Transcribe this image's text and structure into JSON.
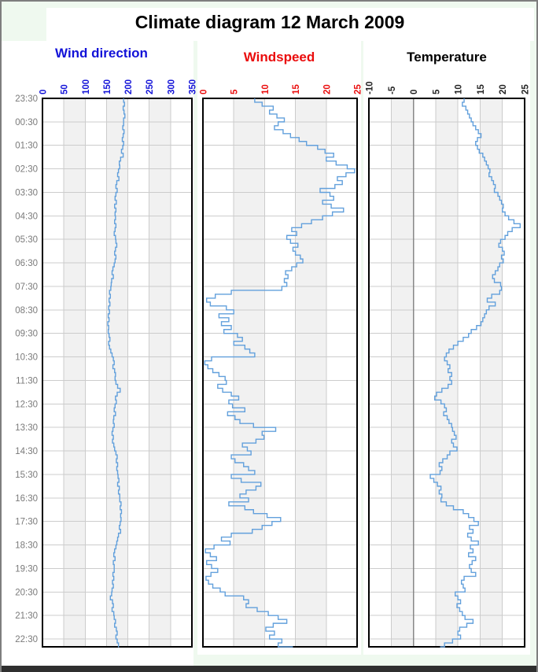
{
  "title": "Climate diagram 12 March 2009",
  "time_axis": {
    "start_label": "23:30",
    "step_minutes": 10,
    "hour_labels": [
      "23:30",
      "00:30",
      "01:30",
      "02:30",
      "03:30",
      "04:30",
      "05:30",
      "06:30",
      "07:30",
      "08:30",
      "09:30",
      "10:30",
      "11:30",
      "12:30",
      "13:30",
      "14:30",
      "15:30",
      "16:30",
      "17:30",
      "18:30",
      "19:30",
      "20:30",
      "21:30",
      "22:30"
    ],
    "label_color": "#7a7a7a"
  },
  "colors": {
    "line": "#62a0dc",
    "grid": "#cccccc",
    "band": "#f1f1f1",
    "border": "#000000",
    "zero_line": "#888888",
    "page_background": "#eff9ef",
    "panel_background": "#ffffff",
    "bottom_bar": "#2f2f2f",
    "window_border": "#7e7e7e"
  },
  "chart_data": [
    {
      "type": "line",
      "title": "Wind direction",
      "title_color": "#1212d8",
      "axis": {
        "min": 0,
        "max": 350,
        "ticks": [
          0,
          50,
          100,
          150,
          200,
          250,
          300,
          350
        ],
        "tick_color": "#1212d8"
      },
      "values": [
        190,
        192,
        189,
        191,
        193,
        190,
        190,
        188,
        191,
        189,
        187,
        190,
        188,
        185,
        189,
        183,
        180,
        181,
        178,
        176,
        179,
        174,
        172,
        175,
        172,
        170,
        173,
        169,
        172,
        170,
        171,
        169,
        172,
        170,
        168,
        171,
        172,
        174,
        171,
        169,
        172,
        170,
        168,
        165,
        163,
        166,
        162,
        161,
        160,
        157,
        159,
        156,
        158,
        155,
        157,
        154,
        156,
        153,
        155,
        154,
        156,
        158,
        155,
        157,
        160,
        163,
        166,
        168,
        165,
        169,
        171,
        170,
        172,
        176,
        182,
        175,
        171,
        173,
        170,
        168,
        171,
        167,
        166,
        168,
        165,
        163,
        166,
        164,
        167,
        169,
        172,
        175,
        173,
        176,
        174,
        176,
        177,
        179,
        176,
        180,
        178,
        181,
        181,
        184,
        182,
        185,
        183,
        184,
        182,
        180,
        183,
        178,
        176,
        174,
        172,
        169,
        167,
        170,
        166,
        168,
        168,
        165,
        167,
        164,
        166,
        163,
        162,
        159,
        164,
        166,
        163,
        167,
        168,
        171,
        169,
        173,
        175,
        172,
        175,
        178,
        177
      ]
    },
    {
      "type": "line",
      "title": "Windspeed",
      "title_color": "#ea0c0c",
      "axis": {
        "min": 0,
        "max": 25,
        "ticks": [
          0,
          5,
          10,
          15,
          20,
          25
        ],
        "tick_color": "#ea0c0c"
      },
      "values": [
        8.4,
        9.6,
        11.4,
        10.8,
        12.0,
        13.2,
        12.2,
        11.6,
        13.0,
        14.2,
        15.6,
        16.8,
        18.6,
        19.8,
        21.2,
        20.0,
        21.6,
        23.4,
        24.6,
        23.2,
        21.8,
        22.6,
        21.4,
        19.0,
        20.6,
        21.2,
        19.4,
        20.8,
        22.8,
        21.0,
        19.4,
        17.6,
        16.0,
        14.4,
        15.2,
        13.6,
        14.2,
        15.4,
        14.6,
        15.0,
        15.8,
        16.2,
        15.2,
        14.4,
        13.4,
        13.8,
        13.2,
        13.6,
        12.8,
        4.6,
        2.0,
        0.6,
        1.2,
        3.8,
        5.0,
        2.6,
        4.2,
        3.0,
        4.6,
        3.4,
        5.6,
        6.4,
        5.0,
        6.8,
        7.6,
        8.4,
        1.4,
        0.3,
        0.8,
        1.6,
        2.6,
        3.6,
        3.8,
        2.4,
        3.2,
        4.6,
        5.8,
        4.2,
        4.8,
        6.8,
        4.0,
        5.2,
        6.0,
        8.2,
        11.8,
        9.6,
        9.9,
        8.6,
        6.4,
        7.2,
        7.8,
        4.6,
        5.2,
        6.6,
        7.4,
        8.4,
        4.6,
        6.2,
        9.4,
        8.6,
        7.0,
        6.0,
        7.4,
        4.2,
        6.8,
        8.2,
        10.4,
        12.6,
        11.2,
        9.6,
        8.0,
        4.6,
        3.0,
        4.4,
        1.8,
        0.4,
        1.2,
        2.2,
        0.6,
        1.4,
        2.4,
        1.3,
        0.5,
        0.9,
        1.6,
        2.8,
        3.6,
        6.6,
        7.4,
        7.0,
        8.8,
        10.6,
        12.2,
        13.6,
        11.4,
        10.2,
        11.6,
        10.8,
        12.8,
        12.2,
        14.6
      ]
    },
    {
      "type": "line",
      "title": "Temperature",
      "title_color": "#000000",
      "axis": {
        "min": -10,
        "max": 25,
        "ticks": [
          -10,
          -5,
          0,
          5,
          10,
          15,
          20,
          25
        ],
        "tick_color": "#222222"
      },
      "values": [
        11.4,
        11.0,
        11.8,
        12.2,
        12.6,
        13.0,
        13.4,
        14.0,
        14.6,
        15.2,
        14.4,
        14.0,
        14.4,
        14.8,
        15.6,
        16.0,
        16.4,
        16.8,
        17.2,
        17.0,
        17.6,
        18.0,
        18.4,
        18.2,
        19.0,
        19.4,
        19.8,
        20.2,
        20.0,
        20.6,
        21.4,
        22.6,
        24.0,
        22.2,
        21.2,
        20.6,
        19.6,
        19.2,
        20.0,
        20.4,
        19.8,
        20.2,
        19.4,
        19.0,
        18.4,
        17.8,
        18.2,
        19.6,
        19.8,
        19.4,
        17.6,
        16.6,
        18.4,
        17.0,
        16.4,
        16.0,
        15.6,
        15.2,
        14.2,
        13.0,
        12.4,
        11.2,
        10.0,
        9.0,
        8.0,
        7.4,
        7.0,
        7.6,
        8.2,
        7.8,
        8.6,
        8.2,
        8.6,
        7.8,
        6.4,
        5.2,
        4.8,
        6.2,
        7.0,
        7.4,
        6.8,
        7.6,
        8.0,
        8.6,
        8.8,
        9.2,
        9.6,
        8.6,
        9.0,
        9.8,
        8.2,
        7.6,
        6.6,
        5.8,
        6.4,
        6.0,
        3.8,
        4.6,
        5.4,
        6.2,
        5.8,
        6.4,
        6.2,
        7.4,
        9.0,
        11.2,
        12.4,
        13.6,
        14.6,
        12.6,
        13.4,
        12.2,
        13.0,
        14.6,
        12.8,
        13.4,
        12.4,
        14.0,
        13.2,
        12.6,
        13.0,
        14.0,
        11.4,
        10.8,
        11.2,
        11.6,
        9.4,
        10.0,
        10.6,
        9.8,
        10.4,
        11.0,
        11.6,
        13.4,
        12.0,
        10.4,
        10.0,
        10.6,
        8.8,
        7.0,
        6.0
      ]
    }
  ]
}
